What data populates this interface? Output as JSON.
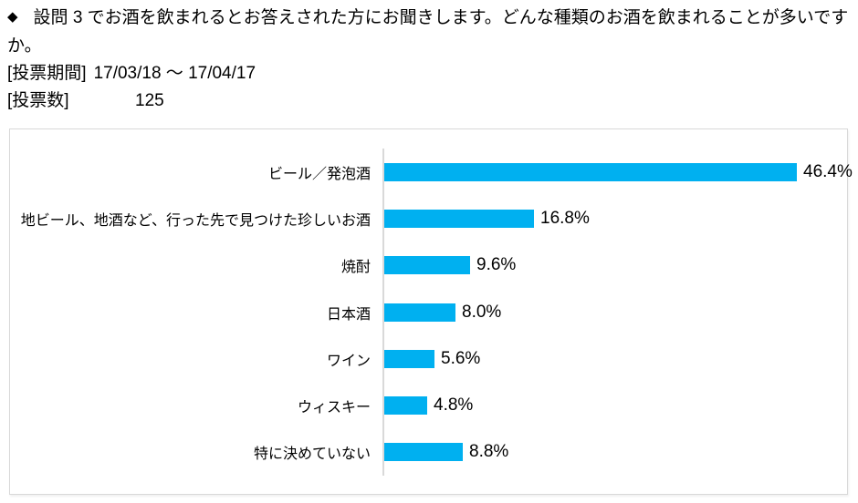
{
  "header": {
    "bullet": "◆",
    "question": "設問 3 でお酒を飲まれるとお答えされた方にお聞きします。どんな種類のお酒を飲まれることが多いですか。",
    "period_label": "[投票期間]",
    "period_value": "17/03/18 ～ 17/04/17",
    "count_label": "[投票数]",
    "count_value": "125"
  },
  "chart_data": {
    "type": "bar",
    "orientation": "horizontal",
    "title": "",
    "xlabel": "",
    "ylabel": "",
    "categories": [
      "ビール／発泡酒",
      "地ビール、地酒など、行った先で見つけた珍しいお酒",
      "焼酎",
      "日本酒",
      "ワイン",
      "ウィスキー",
      "特に決めていない"
    ],
    "values": [
      46.4,
      16.8,
      9.6,
      8.0,
      5.6,
      4.8,
      8.8
    ],
    "value_labels": [
      "46.4%",
      "16.8%",
      "9.6%",
      "8.0%",
      "5.6%",
      "4.8%",
      "8.8%"
    ],
    "xlim": [
      0,
      50
    ],
    "grid": false,
    "legend": false,
    "bar_color": "#00B0F0",
    "axis_color": "#D9D9D9",
    "label_color": "#000000"
  }
}
